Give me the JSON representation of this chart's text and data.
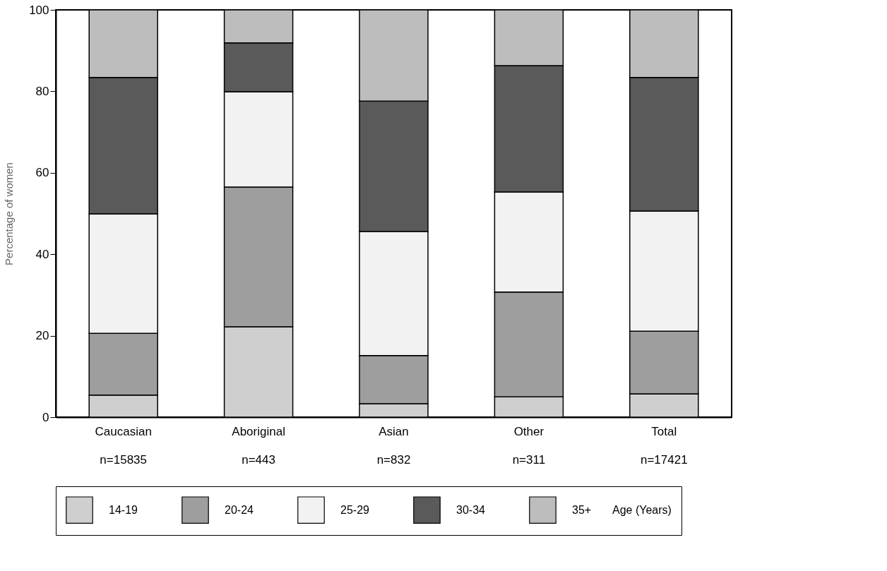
{
  "chart_data": {
    "type": "bar",
    "stacked": true,
    "ylabel": "Percentage of women",
    "legend_title": "Age (Years)",
    "categories": [
      "Caucasian\nn=15835",
      "Aboriginal\nn=443",
      "Asian\nn=832",
      "Other\nn=311",
      "Total\nn=17421"
    ],
    "series": [
      {
        "name": "14-19",
        "color": "#cfcfcf",
        "values": [
          5.4,
          22.2,
          3.3,
          5.0,
          5.7
        ]
      },
      {
        "name": "20-24",
        "color": "#9e9e9e",
        "values": [
          15.2,
          34.3,
          11.8,
          25.7,
          15.4
        ]
      },
      {
        "name": "25-29",
        "color": "#f2f2f2",
        "values": [
          29.3,
          23.4,
          30.5,
          24.6,
          29.5
        ]
      },
      {
        "name": "30-34",
        "color": "#5a5a5a",
        "values": [
          33.5,
          12.0,
          32.0,
          31.0,
          32.8
        ]
      },
      {
        "name": "35+",
        "color": "#bdbdbd",
        "values": [
          16.6,
          8.1,
          22.4,
          13.7,
          16.6
        ]
      }
    ],
    "ylim": [
      0,
      100
    ],
    "yticks": [
      0,
      20,
      40,
      60,
      80,
      100
    ],
    "grid": false,
    "legend": "bottom"
  }
}
